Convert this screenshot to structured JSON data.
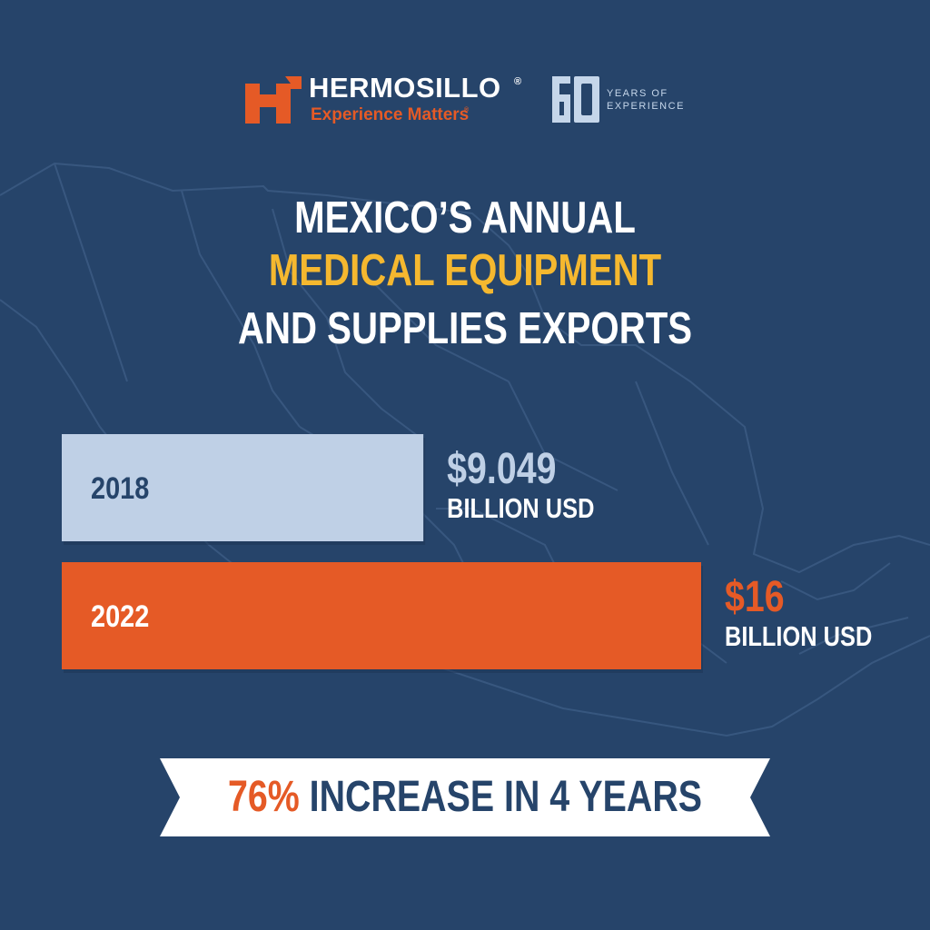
{
  "brand": {
    "name": "HERMOSILLO",
    "registered": "®",
    "tagline": "Experience Matters",
    "tagline_registered": "®",
    "anniversary_line1": "YEARS OF",
    "anniversary_line2": "EXPERIENCE"
  },
  "title": {
    "line1": "MEXICO’S ANNUAL",
    "line2": "MEDICAL EQUIPMENT",
    "line3": "AND SUPPLIES EXPORTS"
  },
  "colors": {
    "background": "#26446a",
    "bar_2018": "#bfd0e6",
    "bar_2022": "#e55a26",
    "highlight": "#f5b82f",
    "value_2018": "#bfd0e6",
    "value_2022": "#e55a26"
  },
  "chart_data": {
    "type": "bar",
    "orientation": "horizontal",
    "title": "MEXICO’S ANNUAL MEDICAL EQUIPMENT AND SUPPLIES EXPORTS",
    "categories": [
      "2018",
      "2022"
    ],
    "values": [
      9.049,
      16
    ],
    "value_labels": [
      "$9.049",
      "$16"
    ],
    "unit_labels": [
      "BILLION USD",
      "BILLION USD"
    ],
    "xlabel": "",
    "ylabel": "",
    "grid": false,
    "legend": "none"
  },
  "banner": {
    "percent": "76%",
    "text": "INCREASE IN 4 YEARS"
  }
}
